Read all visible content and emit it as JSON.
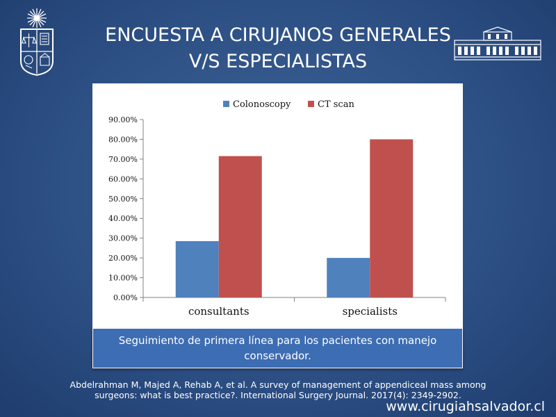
{
  "slide": {
    "title_line1": "ENCUESTA A CIRUJANOS GENERALES",
    "title_line2": "V/S ESPECIALISTAS",
    "caption": "Seguimiento de primera línea para los pacientes con manejo conservador.",
    "reference_line1": "Abdelrahman M, Majed A, Rehab A, et al. A survey of management of appendiceal mass among",
    "reference_line2": "surgeons: what is best practice?. International Surgery Journal. 2017(4): 2349-2902.",
    "website": "www.cirugiahsalvador.cl"
  },
  "logos": {
    "left": "university-seal",
    "right": "building-facade"
  },
  "colors": {
    "background": "#2d5085",
    "colonoscopy": "#4f81bd",
    "ct_scan": "#c0504d",
    "caption_box": "#3d6db3"
  },
  "chart_data": {
    "type": "bar",
    "categories": [
      "consultants",
      "specialists"
    ],
    "series": [
      {
        "name": "Colonoscopy",
        "values": [
          28.5,
          20.0
        ],
        "color": "#4f81bd"
      },
      {
        "name": "CT scan",
        "values": [
          71.5,
          80.0
        ],
        "color": "#c0504d"
      }
    ],
    "ylim": [
      0,
      90
    ],
    "yticks": [
      "0.00%",
      "10.00%",
      "20.00%",
      "30.00%",
      "40.00%",
      "50.00%",
      "60.00%",
      "70.00%",
      "80.00%",
      "90.00%"
    ],
    "ytick_values": [
      0,
      10,
      20,
      30,
      40,
      50,
      60,
      70,
      80,
      90
    ],
    "legend_position": "top",
    "grid": false
  }
}
